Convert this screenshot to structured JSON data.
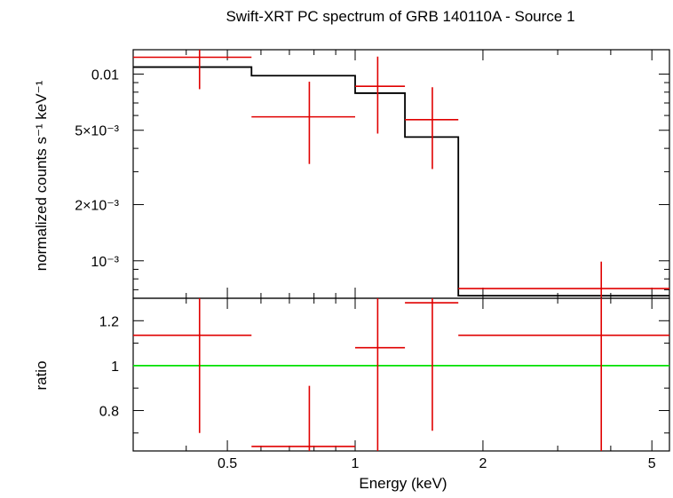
{
  "title": "Swift-XRT PC spectrum of GRB 140110A - Source 1",
  "chart_data": [
    {
      "type": "scatter",
      "panel": "spectrum",
      "ylabel": "normalized counts s⁻¹ keV⁻¹",
      "xscale": "log",
      "yscale": "log",
      "xlim": [
        0.3,
        5.5
      ],
      "ylim": [
        0.00063,
        0.0135
      ],
      "yticks": [
        {
          "value": 0.01,
          "label": "0.01"
        },
        {
          "value": 0.005,
          "label": "5×10⁻³"
        },
        {
          "value": 0.002,
          "label": "2×10⁻³"
        },
        {
          "value": 0.001,
          "label": "10⁻³"
        }
      ],
      "series": [
        {
          "kind": "data-with-errors",
          "color": "#e00000",
          "points": [
            {
              "x": 0.43,
              "xlo": 0.3,
              "xhi": 0.57,
              "y": 0.0123,
              "ylo": 0.0083,
              "yhi": 0.0135
            },
            {
              "x": 0.78,
              "xlo": 0.57,
              "xhi": 1.0,
              "y": 0.0059,
              "ylo": 0.0033,
              "yhi": 0.0091
            },
            {
              "x": 1.13,
              "xlo": 1.0,
              "xhi": 1.31,
              "y": 0.0086,
              "ylo": 0.0048,
              "yhi": 0.0124
            },
            {
              "x": 1.52,
              "xlo": 1.31,
              "xhi": 1.75,
              "y": 0.0057,
              "ylo": 0.0031,
              "yhi": 0.0085
            },
            {
              "x": 3.8,
              "xlo": 1.75,
              "xhi": 5.5,
              "y": 0.00071,
              "ylo": 0.00063,
              "yhi": 0.00099
            }
          ]
        },
        {
          "kind": "model-step",
          "color": "#000000",
          "bins": [
            {
              "xlo": 0.3,
              "xhi": 0.57,
              "y": 0.0109
            },
            {
              "xlo": 0.57,
              "xhi": 1.0,
              "y": 0.0098
            },
            {
              "xlo": 1.0,
              "xhi": 1.31,
              "y": 0.0079
            },
            {
              "xlo": 1.31,
              "xhi": 1.75,
              "y": 0.0046
            },
            {
              "xlo": 1.75,
              "xhi": 5.5,
              "y": 0.00065
            }
          ]
        }
      ]
    },
    {
      "type": "scatter",
      "panel": "ratio",
      "xlabel": "Energy (keV)",
      "ylabel": "ratio",
      "xscale": "log",
      "yscale": "linear",
      "xlim": [
        0.3,
        5.5
      ],
      "ylim": [
        0.62,
        1.3
      ],
      "xticks": [
        {
          "value": 0.5,
          "label": "0.5"
        },
        {
          "value": 1,
          "label": "1"
        },
        {
          "value": 2,
          "label": "2"
        },
        {
          "value": 5,
          "label": "5"
        }
      ],
      "yticks": [
        {
          "value": 0.8,
          "label": "0.8"
        },
        {
          "value": 1.0,
          "label": "1"
        },
        {
          "value": 1.2,
          "label": "1.2"
        }
      ],
      "reference_line": {
        "y": 1.0,
        "color": "#00e000"
      },
      "series": [
        {
          "kind": "ratio-with-errors",
          "color": "#e00000",
          "points": [
            {
              "x": 0.43,
              "xlo": 0.3,
              "xhi": 0.57,
              "y": 1.135,
              "ylo": 0.7,
              "yhi": 1.3
            },
            {
              "x": 0.78,
              "xlo": 0.57,
              "xhi": 1.0,
              "y": 0.64,
              "ylo": 0.62,
              "yhi": 0.91
            },
            {
              "x": 1.13,
              "xlo": 1.0,
              "xhi": 1.31,
              "y": 1.08,
              "ylo": 0.62,
              "yhi": 1.3
            },
            {
              "x": 1.52,
              "xlo": 1.31,
              "xhi": 1.75,
              "y": 1.28,
              "ylo": 0.71,
              "yhi": 1.3
            },
            {
              "x": 3.8,
              "xlo": 1.75,
              "xhi": 5.5,
              "y": 1.135,
              "ylo": 0.62,
              "yhi": 1.3
            }
          ]
        }
      ]
    }
  ]
}
